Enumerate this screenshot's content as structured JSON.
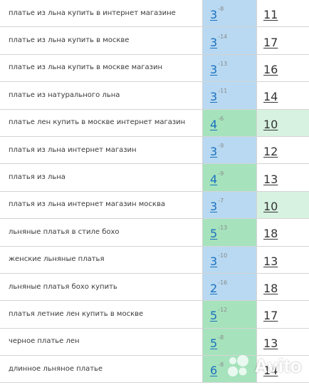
{
  "colors": {
    "blue_cell": "#b8d9f1",
    "green_cell": "#a6e3bd",
    "light_green_cell": "#d7f2e1",
    "link": "#1a6fbf",
    "border": "#d4d4d4"
  },
  "rows": [
    {
      "query": "платье из льна купить в интернет магазине",
      "position": "3",
      "delta": "-8",
      "pos_color": "blue",
      "count": "11",
      "cnt_color": "none"
    },
    {
      "query": "платье из льна купить в москве",
      "position": "3",
      "delta": "-14",
      "pos_color": "blue",
      "count": "17",
      "cnt_color": "none"
    },
    {
      "query": "платье из льна купить в москве магазин",
      "position": "3",
      "delta": "-13",
      "pos_color": "blue",
      "count": "16",
      "cnt_color": "none"
    },
    {
      "query": "платье из натурального льна",
      "position": "3",
      "delta": "-11",
      "pos_color": "blue",
      "count": "14",
      "cnt_color": "none"
    },
    {
      "query": "платье лен купить в москве интернет магазин",
      "position": "4",
      "delta": "-6",
      "pos_color": "green",
      "count": "10",
      "cnt_color": "lightgreen"
    },
    {
      "query": "платья из льна интернет магазин",
      "position": "3",
      "delta": "-9",
      "pos_color": "blue",
      "count": "12",
      "cnt_color": "none"
    },
    {
      "query": "платья из льна",
      "position": "4",
      "delta": "-9",
      "pos_color": "green",
      "count": "13",
      "cnt_color": "none"
    },
    {
      "query": "платья из льна интернет магазин москва",
      "position": "3",
      "delta": "-7",
      "pos_color": "blue",
      "count": "10",
      "cnt_color": "lightgreen"
    },
    {
      "query": "льняные платья в стиле бохо",
      "position": "5",
      "delta": "-13",
      "pos_color": "green",
      "count": "18",
      "cnt_color": "none"
    },
    {
      "query": "женские льняные платья",
      "position": "3",
      "delta": "-10",
      "pos_color": "blue",
      "count": "13",
      "cnt_color": "none"
    },
    {
      "query": "льняные платья бохо купить",
      "position": "2",
      "delta": "-16",
      "pos_color": "blue",
      "count": "18",
      "cnt_color": "none"
    },
    {
      "query": "платья летние лен купить в москве",
      "position": "5",
      "delta": "-12",
      "pos_color": "green",
      "count": "17",
      "cnt_color": "none"
    },
    {
      "query": "черное платье лен",
      "position": "5",
      "delta": "-8",
      "pos_color": "green",
      "count": "13",
      "cnt_color": "none"
    },
    {
      "query": "длинное льняное платье",
      "position": "6",
      "delta": "-8",
      "pos_color": "green",
      "count": "14",
      "cnt_color": "none"
    }
  ],
  "watermark": {
    "text": "Avito",
    "icon": "avito-logo-icon"
  }
}
